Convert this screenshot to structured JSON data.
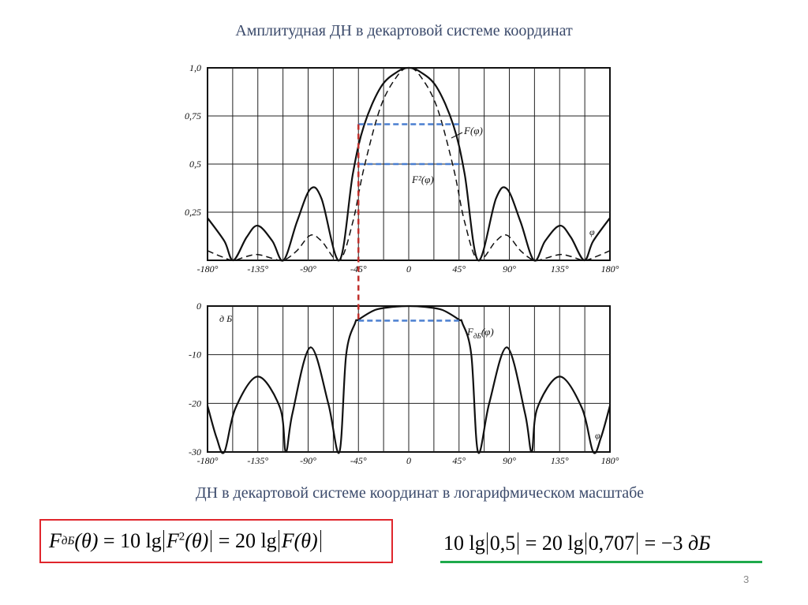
{
  "title": "Амплитудная ДН в декартовой системе координат",
  "subtitle": "ДН в декартовой системе координат в логарифмическом масштабе",
  "page_number": "3",
  "colors": {
    "text_blue": "#3b4a6b",
    "red_frame": "#e0262c",
    "green_underline": "#1faa4b",
    "dashed_blue": "#4a7fd0",
    "dashed_red": "#c0302c"
  },
  "formula_left": {
    "lhs_symbol": "F",
    "lhs_sub": "дБ",
    "lhs_arg": "(θ)",
    "eq1": " = 10 lg",
    "mid_symbol": "F",
    "mid_sup": "2",
    "mid_arg": "(θ)",
    "eq2": " = 20 lg",
    "rhs_symbol": "F",
    "rhs_arg": "(θ)"
  },
  "formula_right": {
    "part1": "10 lg",
    "val1": "0,5",
    "part2": " = 20 lg",
    "val2": "0,707",
    "part3": " = −3 ",
    "unit": "дБ"
  },
  "chart_data": [
    {
      "type": "line",
      "title": "",
      "xlabel": "φ",
      "ylabel": "",
      "xlim": [
        -180,
        180
      ],
      "ylim": [
        0,
        1.0
      ],
      "x_ticks": [
        "-180°",
        "-135°",
        "-90°",
        "-45°",
        "0",
        "45°",
        "90°",
        "135°",
        "180°"
      ],
      "y_ticks": [
        "1,0",
        "0,75",
        "0,5",
        "0,25"
      ],
      "grid": true,
      "series": [
        {
          "name": "F(φ)",
          "style": "solid",
          "points": [
            [
              -180,
              0.22
            ],
            [
              -165,
              0.1
            ],
            [
              -157,
              0
            ],
            [
              -145,
              0.12
            ],
            [
              -135,
              0.18
            ],
            [
              -122,
              0.1
            ],
            [
              -112,
              0
            ],
            [
              -100,
              0.2
            ],
            [
              -88,
              0.37
            ],
            [
              -78,
              0.32
            ],
            [
              -62,
              0
            ],
            [
              -50,
              0.45
            ],
            [
              -40,
              0.7
            ],
            [
              -25,
              0.9
            ],
            [
              -10,
              0.98
            ],
            [
              0,
              1.0
            ],
            [
              10,
              0.98
            ],
            [
              25,
              0.9
            ],
            [
              40,
              0.7
            ],
            [
              50,
              0.45
            ],
            [
              62,
              0
            ],
            [
              78,
              0.32
            ],
            [
              88,
              0.37
            ],
            [
              100,
              0.2
            ],
            [
              112,
              0
            ],
            [
              122,
              0.1
            ],
            [
              135,
              0.18
            ],
            [
              145,
              0.12
            ],
            [
              157,
              0
            ],
            [
              165,
              0.1
            ],
            [
              180,
              0.22
            ]
          ]
        },
        {
          "name": "F²(φ)",
          "style": "dashed",
          "points": [
            [
              -180,
              0.05
            ],
            [
              -168,
              0.02
            ],
            [
              -157,
              0
            ],
            [
              -145,
              0.02
            ],
            [
              -135,
              0.03
            ],
            [
              -122,
              0.01
            ],
            [
              -112,
              0
            ],
            [
              -100,
              0.05
            ],
            [
              -88,
              0.13
            ],
            [
              -78,
              0.1
            ],
            [
              -62,
              0
            ],
            [
              -50,
              0.2
            ],
            [
              -40,
              0.48
            ],
            [
              -25,
              0.8
            ],
            [
              -10,
              0.96
            ],
            [
              0,
              1.0
            ],
            [
              10,
              0.96
            ],
            [
              25,
              0.8
            ],
            [
              40,
              0.48
            ],
            [
              50,
              0.2
            ],
            [
              62,
              0
            ],
            [
              78,
              0.1
            ],
            [
              88,
              0.13
            ],
            [
              100,
              0.05
            ],
            [
              112,
              0
            ],
            [
              122,
              0.01
            ],
            [
              135,
              0.03
            ],
            [
              145,
              0.02
            ],
            [
              157,
              0
            ],
            [
              168,
              0.02
            ],
            [
              180,
              0.05
            ]
          ]
        }
      ],
      "annotations": [
        {
          "type": "level",
          "y": 0.707,
          "x_range": [
            -45,
            45
          ],
          "color": "#4a7fd0"
        },
        {
          "type": "level",
          "y": 0.5,
          "x_range": [
            -45,
            45
          ],
          "color": "#4a7fd0"
        }
      ]
    },
    {
      "type": "line",
      "title": "",
      "xlabel": "φ",
      "ylabel": "дБ",
      "xlim": [
        -180,
        180
      ],
      "ylim": [
        -30,
        0
      ],
      "x_ticks": [
        "-180°",
        "-135°",
        "-90°",
        "-45°",
        "0",
        "45°",
        "90°",
        "135°",
        "180°"
      ],
      "y_ticks": [
        "0",
        "-10",
        "-20",
        "-30"
      ],
      "grid": true,
      "series": [
        {
          "name": "F_дБ(φ)",
          "style": "solid",
          "points": [
            [
              -180,
              -20.5
            ],
            [
              -172,
              -27
            ],
            [
              -165,
              -30
            ],
            [
              -155,
              -21
            ],
            [
              -135,
              -14.5
            ],
            [
              -115,
              -21
            ],
            [
              -110,
              -30
            ],
            [
              -104,
              -22
            ],
            [
              -88,
              -8.5
            ],
            [
              -72,
              -20
            ],
            [
              -62,
              -30
            ],
            [
              -56,
              -10
            ],
            [
              -48,
              -3.5
            ],
            [
              -45,
              -2.8
            ],
            [
              -30,
              -0.8
            ],
            [
              -15,
              -0.2
            ],
            [
              0,
              0
            ],
            [
              15,
              -0.2
            ],
            [
              30,
              -0.8
            ],
            [
              45,
              -2.8
            ],
            [
              48,
              -3.5
            ],
            [
              56,
              -10
            ],
            [
              62,
              -30
            ],
            [
              72,
              -20
            ],
            [
              88,
              -8.5
            ],
            [
              104,
              -22
            ],
            [
              110,
              -30
            ],
            [
              115,
              -21
            ],
            [
              135,
              -14.5
            ],
            [
              155,
              -21
            ],
            [
              165,
              -30
            ],
            [
              172,
              -27
            ],
            [
              180,
              -20.5
            ]
          ]
        }
      ],
      "annotations": [
        {
          "type": "level",
          "y": -3,
          "x_range": [
            -45,
            45
          ],
          "color": "#4a7fd0"
        }
      ]
    }
  ],
  "figure_labels": {
    "top_curve1": "F(φ)",
    "top_curve2": "F²(φ)",
    "top_axis": "φ",
    "bottom_curve": "F",
    "bottom_curve_sub": "дБ",
    "bottom_curve_arg": "(φ)",
    "bottom_unit": "д Б",
    "bottom_axis": "φ"
  }
}
